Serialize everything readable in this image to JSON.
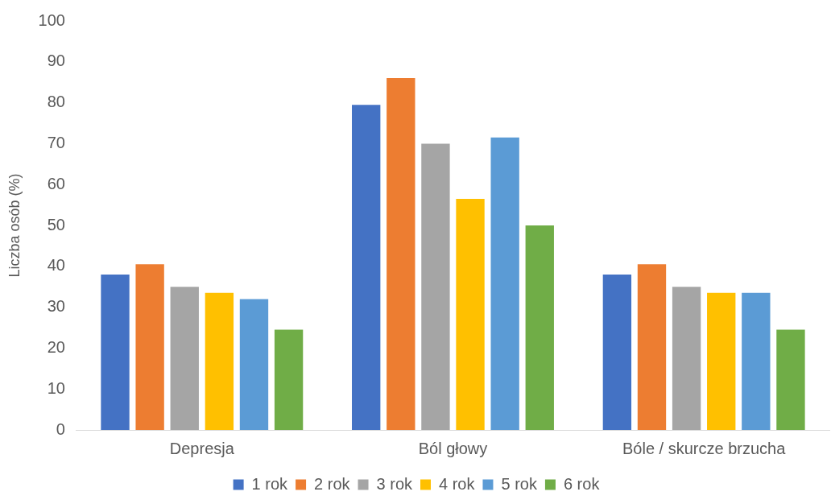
{
  "chart_data": {
    "type": "bar",
    "ylabel": "Liczba osób (%)",
    "categories": [
      "Depresja",
      "Ból głowy",
      "Bóle / skurcze brzucha"
    ],
    "series": [
      {
        "name": "1 rok",
        "color": "#4472c4",
        "values": [
          38,
          79.5,
          38
        ]
      },
      {
        "name": "2 rok",
        "color": "#ed7d31",
        "values": [
          40.5,
          86,
          40.5
        ]
      },
      {
        "name": "3 rok",
        "color": "#a5a5a5",
        "values": [
          35,
          70,
          35
        ]
      },
      {
        "name": "4 rok",
        "color": "#ffc000",
        "values": [
          33.5,
          56.5,
          33.5
        ]
      },
      {
        "name": "5 rok",
        "color": "#5b9bd5",
        "values": [
          32,
          71.5,
          33.5
        ]
      },
      {
        "name": "6 rok",
        "color": "#70ad47",
        "values": [
          24.5,
          50,
          24.5
        ]
      }
    ],
    "ylim": [
      0,
      100
    ],
    "yticks": [
      0,
      10,
      20,
      30,
      40,
      50,
      60,
      70,
      80,
      90,
      100
    ],
    "grid": false,
    "legend": "bottom"
  }
}
